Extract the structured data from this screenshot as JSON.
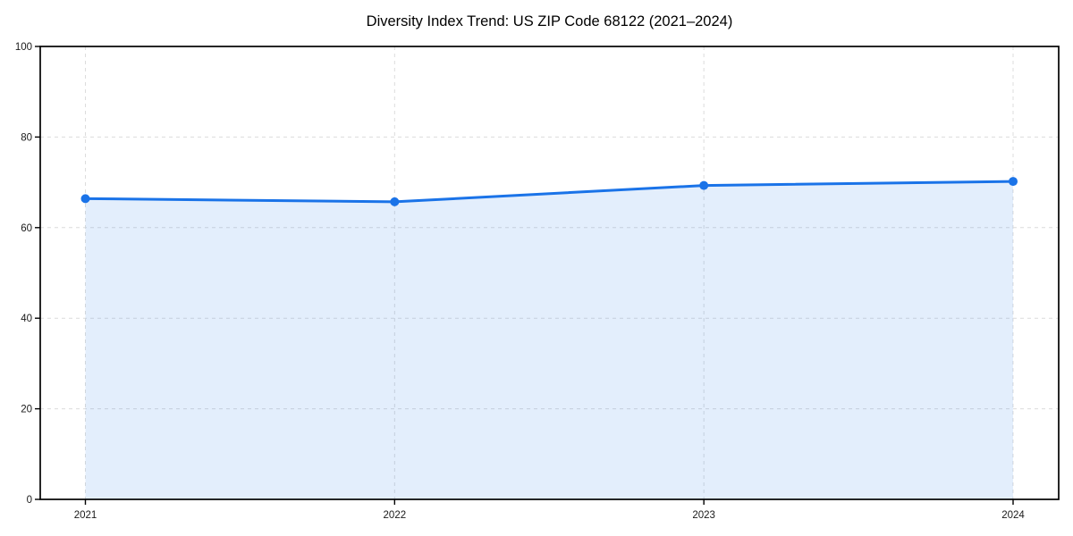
{
  "chart_data": {
    "type": "area",
    "title": "Diversity Index Trend: US ZIP Code 68122 (2021–2024)",
    "categories": [
      "2021",
      "2022",
      "2023",
      "2024"
    ],
    "values": [
      66.4,
      65.7,
      69.3,
      70.2
    ],
    "xlabel": "",
    "ylabel": "",
    "ylim": [
      0,
      100
    ],
    "yticks": [
      0,
      20,
      40,
      60,
      80,
      100
    ],
    "grid": true,
    "grid_style": "dashed",
    "legend": "none",
    "line_color": "#1a73e8",
    "marker_color": "#1a73e8",
    "fill_color": "rgba(26,115,232,0.12)",
    "grid_color": "#dcdcdc",
    "axis_color": "#000000",
    "tick_label_color": "#1a1a1a",
    "title_color": "#000000"
  }
}
